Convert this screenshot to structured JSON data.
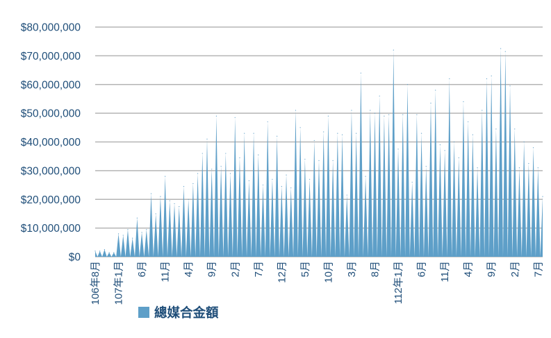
{
  "chart_data": {
    "type": "area",
    "ylim": [
      0,
      80000000
    ],
    "yticks": [
      "$0",
      "$10,000,000",
      "$20,000,000",
      "$30,000,000",
      "$40,000,000",
      "$50,000,000",
      "$60,000,000",
      "$70,000,000",
      "$80,000,000"
    ],
    "grid": true,
    "legend_position": "bottom",
    "colors": {
      "series": "#5e9fc8",
      "grid": "#b5b5b5",
      "text": "#1f4e79"
    },
    "xtick_labels": [
      {
        "i": 0,
        "label": "106年8月"
      },
      {
        "i": 10,
        "label": "107年1月"
      },
      {
        "i": 20,
        "label": "6月"
      },
      {
        "i": 30,
        "label": "11月"
      },
      {
        "i": 40,
        "label": "4月"
      },
      {
        "i": 50,
        "label": "9月"
      },
      {
        "i": 60,
        "label": "2月"
      },
      {
        "i": 70,
        "label": "7月"
      },
      {
        "i": 80,
        "label": "12月"
      },
      {
        "i": 90,
        "label": "5月"
      },
      {
        "i": 100,
        "label": "10月"
      },
      {
        "i": 110,
        "label": "3月"
      },
      {
        "i": 120,
        "label": "8月"
      },
      {
        "i": 130,
        "label": "112年1月"
      },
      {
        "i": 140,
        "label": "6月"
      },
      {
        "i": 150,
        "label": "11月"
      },
      {
        "i": 160,
        "label": "4月"
      },
      {
        "i": 170,
        "label": "9月"
      },
      {
        "i": 180,
        "label": "2月"
      },
      {
        "i": 190,
        "label": "7月"
      }
    ],
    "series": [
      {
        "name": "總媒合金額",
        "values": [
          2000000,
          0,
          2000000,
          0,
          2500000,
          0,
          1500000,
          0,
          1500000,
          0,
          8000000,
          0,
          7500000,
          0,
          9500000,
          0,
          6500000,
          0,
          13500000,
          0,
          8500000,
          0,
          9500000,
          0,
          22000000,
          0,
          15000000,
          0,
          21000000,
          0,
          28000000,
          0,
          19500000,
          0,
          18500000,
          0,
          17500000,
          0,
          24500000,
          0,
          20000000,
          0,
          25500000,
          0,
          29000000,
          0,
          36000000,
          0,
          41000000,
          0,
          30500000,
          0,
          49000000,
          0,
          31500000,
          0,
          36000000,
          0,
          29000000,
          0,
          48500000,
          0,
          34500000,
          0,
          43000000,
          0,
          26500000,
          0,
          43000000,
          0,
          35500000,
          0,
          25000000,
          0,
          47000000,
          0,
          27000000,
          0,
          42000000,
          0,
          24500000,
          0,
          28500000,
          0,
          24000000,
          0,
          51000000,
          0,
          45000000,
          0,
          34000000,
          0,
          27000000,
          0,
          40500000,
          0,
          33500000,
          0,
          43500000,
          0,
          49000000,
          0,
          33500000,
          0,
          43000000,
          0,
          42500000,
          0,
          21500000,
          0,
          51000000,
          0,
          43000000,
          0,
          64000000,
          0,
          28000000,
          0,
          51000000,
          0,
          50000000,
          0,
          56000000,
          0,
          49000000,
          0,
          49500000,
          0,
          72000000,
          0,
          37500000,
          0,
          49500000,
          0,
          60000000,
          0,
          26000000,
          0,
          49500000,
          0,
          43000000,
          0,
          31500000,
          0,
          53500000,
          0,
          58000000,
          0,
          39000000,
          0,
          37000000,
          0,
          62000000,
          0,
          40000000,
          0,
          34500000,
          0,
          54000000,
          0,
          47000000,
          0,
          42500000,
          0,
          31000000,
          0,
          51000000,
          0,
          62000000,
          0,
          63000000,
          0,
          44500000,
          0,
          72500000,
          0,
          71500000,
          0,
          59500000,
          0,
          44500000,
          0,
          31000000,
          0,
          40000000,
          0,
          32500000,
          0,
          38000000,
          0,
          31000000,
          0,
          21000000
        ]
      }
    ]
  }
}
